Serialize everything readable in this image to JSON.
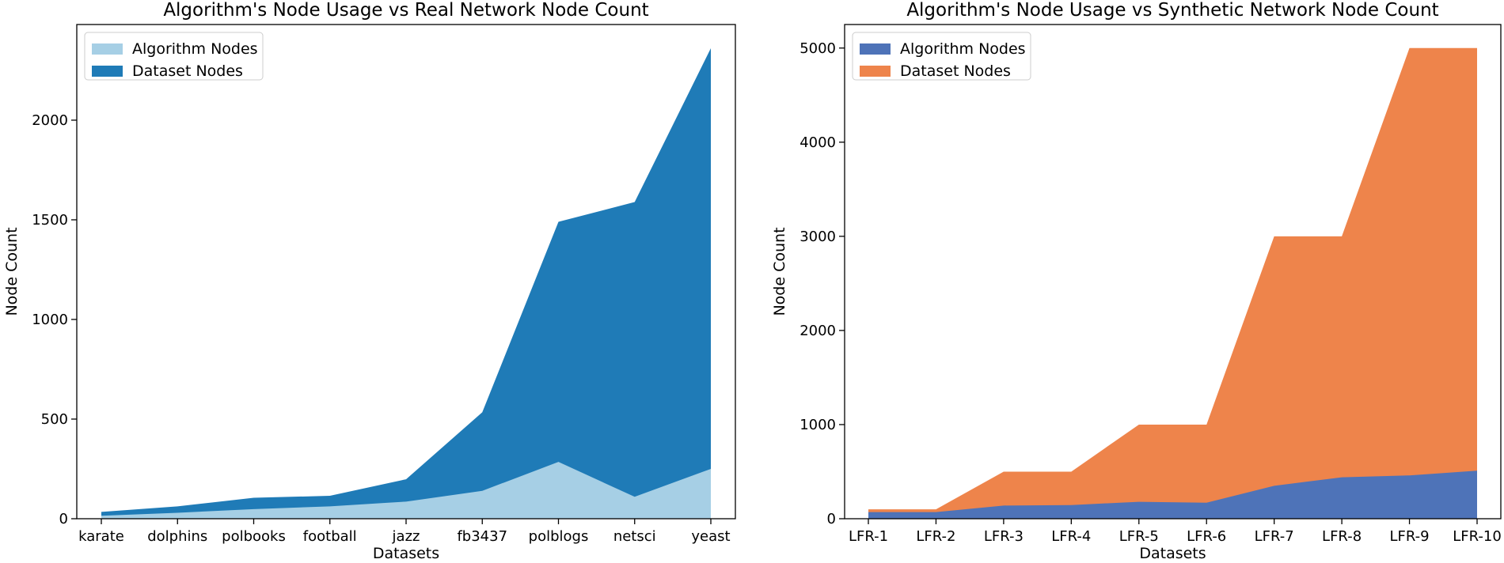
{
  "chart_data": [
    {
      "type": "area",
      "stacked": false,
      "title": "Algorithm's Node Usage vs Real Network Node Count",
      "xlabel": "Datasets",
      "ylabel": "Node Count",
      "categories": [
        "karate",
        "dolphins",
        "polbooks",
        "football",
        "jazz",
        "fb3437",
        "polblogs",
        "netsci",
        "yeast"
      ],
      "ylim": [
        0,
        2480
      ],
      "yticks": [
        0,
        500,
        1000,
        1500,
        2000
      ],
      "legend_position": "top-left",
      "grid": false,
      "series": [
        {
          "name": "Dataset Nodes",
          "color": "#1f7bb7",
          "values": [
            34,
            62,
            105,
            115,
            198,
            534,
            1490,
            1589,
            2361
          ]
        },
        {
          "name": "Algorithm Nodes",
          "color": "#a6cfe5",
          "values": [
            15,
            30,
            48,
            62,
            86,
            140,
            285,
            110,
            250
          ]
        }
      ],
      "legend_order": [
        "Algorithm Nodes",
        "Dataset Nodes"
      ]
    },
    {
      "type": "area",
      "stacked": false,
      "title": "Algorithm's Node Usage vs Synthetic Network Node Count",
      "xlabel": "Datasets",
      "ylabel": "Node Count",
      "categories": [
        "LFR-1",
        "LFR-2",
        "LFR-3",
        "LFR-4",
        "LFR-5",
        "LFR-6",
        "LFR-7",
        "LFR-8",
        "LFR-9",
        "LFR-10"
      ],
      "ylim": [
        0,
        5250
      ],
      "yticks": [
        0,
        1000,
        2000,
        3000,
        4000,
        5000
      ],
      "legend_position": "top-left",
      "grid": false,
      "series": [
        {
          "name": "Dataset Nodes",
          "color": "#ee844b",
          "values": [
            100,
            100,
            500,
            500,
            1000,
            1000,
            3000,
            3000,
            5000,
            5000
          ]
        },
        {
          "name": "Algorithm Nodes",
          "color": "#4e73b8",
          "values": [
            70,
            70,
            140,
            145,
            180,
            170,
            350,
            440,
            460,
            510
          ]
        }
      ],
      "legend_order": [
        "Algorithm Nodes",
        "Dataset Nodes"
      ]
    }
  ]
}
